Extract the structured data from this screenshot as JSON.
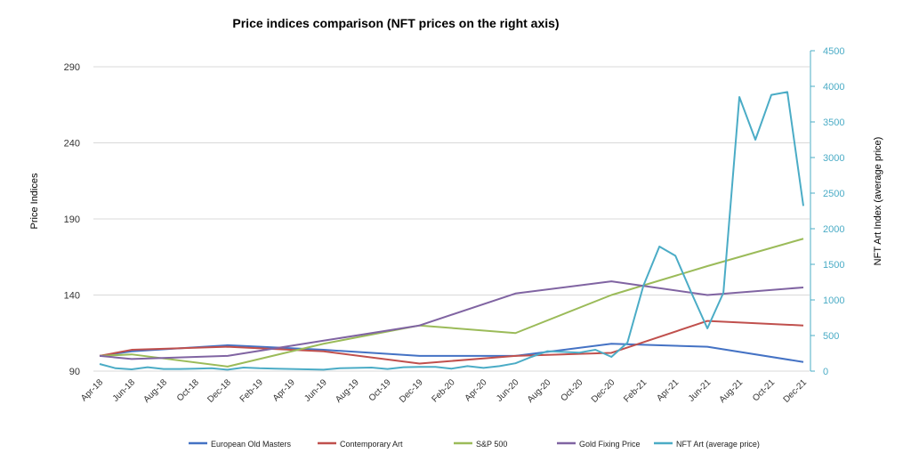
{
  "chart_data": {
    "type": "line",
    "title": "Price indices comparison (NFT prices on the right axis)",
    "ylabel": "Price Indices",
    "y2label": "NFT Art Index (average price)",
    "ylim": [
      90,
      290
    ],
    "yticks": [
      90,
      140,
      190,
      240,
      290
    ],
    "y2lim": [
      0,
      4500
    ],
    "y2ticks": [
      0,
      500,
      1000,
      1500,
      2000,
      2500,
      3000,
      3500,
      4000,
      4500
    ],
    "x": [
      "Apr-18",
      "May-18",
      "Jun-18",
      "Jul-18",
      "Aug-18",
      "Sep-18",
      "Oct-18",
      "Nov-18",
      "Dec-18",
      "Jan-19",
      "Feb-19",
      "Mar-19",
      "Apr-19",
      "May-19",
      "Jun-19",
      "Jul-19",
      "Aug-19",
      "Sep-19",
      "Oct-19",
      "Nov-19",
      "Dec-19",
      "Jan-20",
      "Feb-20",
      "Mar-20",
      "Apr-20",
      "May-20",
      "Jun-20",
      "Jul-20",
      "Aug-20",
      "Sep-20",
      "Oct-20",
      "Nov-20",
      "Dec-20",
      "Jan-21",
      "Feb-21",
      "Mar-21",
      "Apr-21",
      "May-21",
      "Jun-21",
      "Jul-21",
      "Aug-21",
      "Sep-21",
      "Oct-21",
      "Nov-21",
      "Dec-21"
    ],
    "xtick_labels": [
      "Apr-18",
      "Jun-18",
      "Aug-18",
      "Oct-18",
      "Dec-18",
      "Feb-19",
      "Apr-19",
      "Jun-19",
      "Aug-19",
      "Oct-19",
      "Dec-19",
      "Feb-20",
      "Apr-20",
      "Jun-20",
      "Aug-20",
      "Oct-20",
      "Dec-20",
      "Feb-21",
      "Apr-21",
      "Jun-21",
      "Aug-21",
      "Oct-21",
      "Dec-21"
    ],
    "legend_position": "bottom",
    "grid": true,
    "series": [
      {
        "name": "European Old Masters",
        "color": "#4472c4",
        "axis": "left",
        "points": [
          [
            "Apr-18",
            100
          ],
          [
            "Jun-18",
            103
          ],
          [
            "Dec-18",
            107
          ],
          [
            "Jun-19",
            104
          ],
          [
            "Dec-19",
            100
          ],
          [
            "Jun-20",
            100
          ],
          [
            "Dec-20",
            108
          ],
          [
            "Jun-21",
            106
          ],
          [
            "Dec-21",
            96
          ]
        ]
      },
      {
        "name": "Contemporary Art",
        "color": "#c0504d",
        "axis": "left",
        "points": [
          [
            "Apr-18",
            100
          ],
          [
            "Jun-18",
            104
          ],
          [
            "Dec-18",
            106
          ],
          [
            "Jun-19",
            103
          ],
          [
            "Dec-19",
            95
          ],
          [
            "Jun-20",
            100
          ],
          [
            "Dec-20",
            102
          ],
          [
            "Jun-21",
            123
          ],
          [
            "Dec-21",
            120
          ]
        ]
      },
      {
        "name": "S&P 500",
        "color": "#9bbb59",
        "axis": "left",
        "points": [
          [
            "Apr-18",
            100
          ],
          [
            "Jun-18",
            101
          ],
          [
            "Dec-18",
            93
          ],
          [
            "Jun-19",
            108
          ],
          [
            "Dec-19",
            120
          ],
          [
            "Jun-20",
            115
          ],
          [
            "Dec-20",
            140
          ],
          [
            "Jun-21",
            159
          ],
          [
            "Dec-21",
            177
          ]
        ]
      },
      {
        "name": "Gold Fixing Price",
        "color": "#8064a2",
        "axis": "left",
        "points": [
          [
            "Apr-18",
            100
          ],
          [
            "Jun-18",
            98
          ],
          [
            "Dec-18",
            100
          ],
          [
            "Jun-19",
            110
          ],
          [
            "Dec-19",
            120
          ],
          [
            "Jun-20",
            141
          ],
          [
            "Dec-20",
            149
          ],
          [
            "Jun-21",
            140
          ],
          [
            "Dec-21",
            145
          ]
        ]
      },
      {
        "name": "NFT Art (average price)",
        "color": "#4bacc6",
        "axis": "right",
        "values": [
          100,
          40,
          25,
          55,
          30,
          30,
          35,
          40,
          20,
          50,
          40,
          35,
          30,
          25,
          20,
          40,
          45,
          50,
          30,
          55,
          60,
          60,
          35,
          70,
          45,
          70,
          110,
          200,
          280,
          270,
          260,
          300,
          200,
          400,
          1200,
          1750,
          1620,
          1100,
          600,
          1100,
          3850,
          3250,
          3880,
          3920,
          2320
        ]
      }
    ]
  }
}
